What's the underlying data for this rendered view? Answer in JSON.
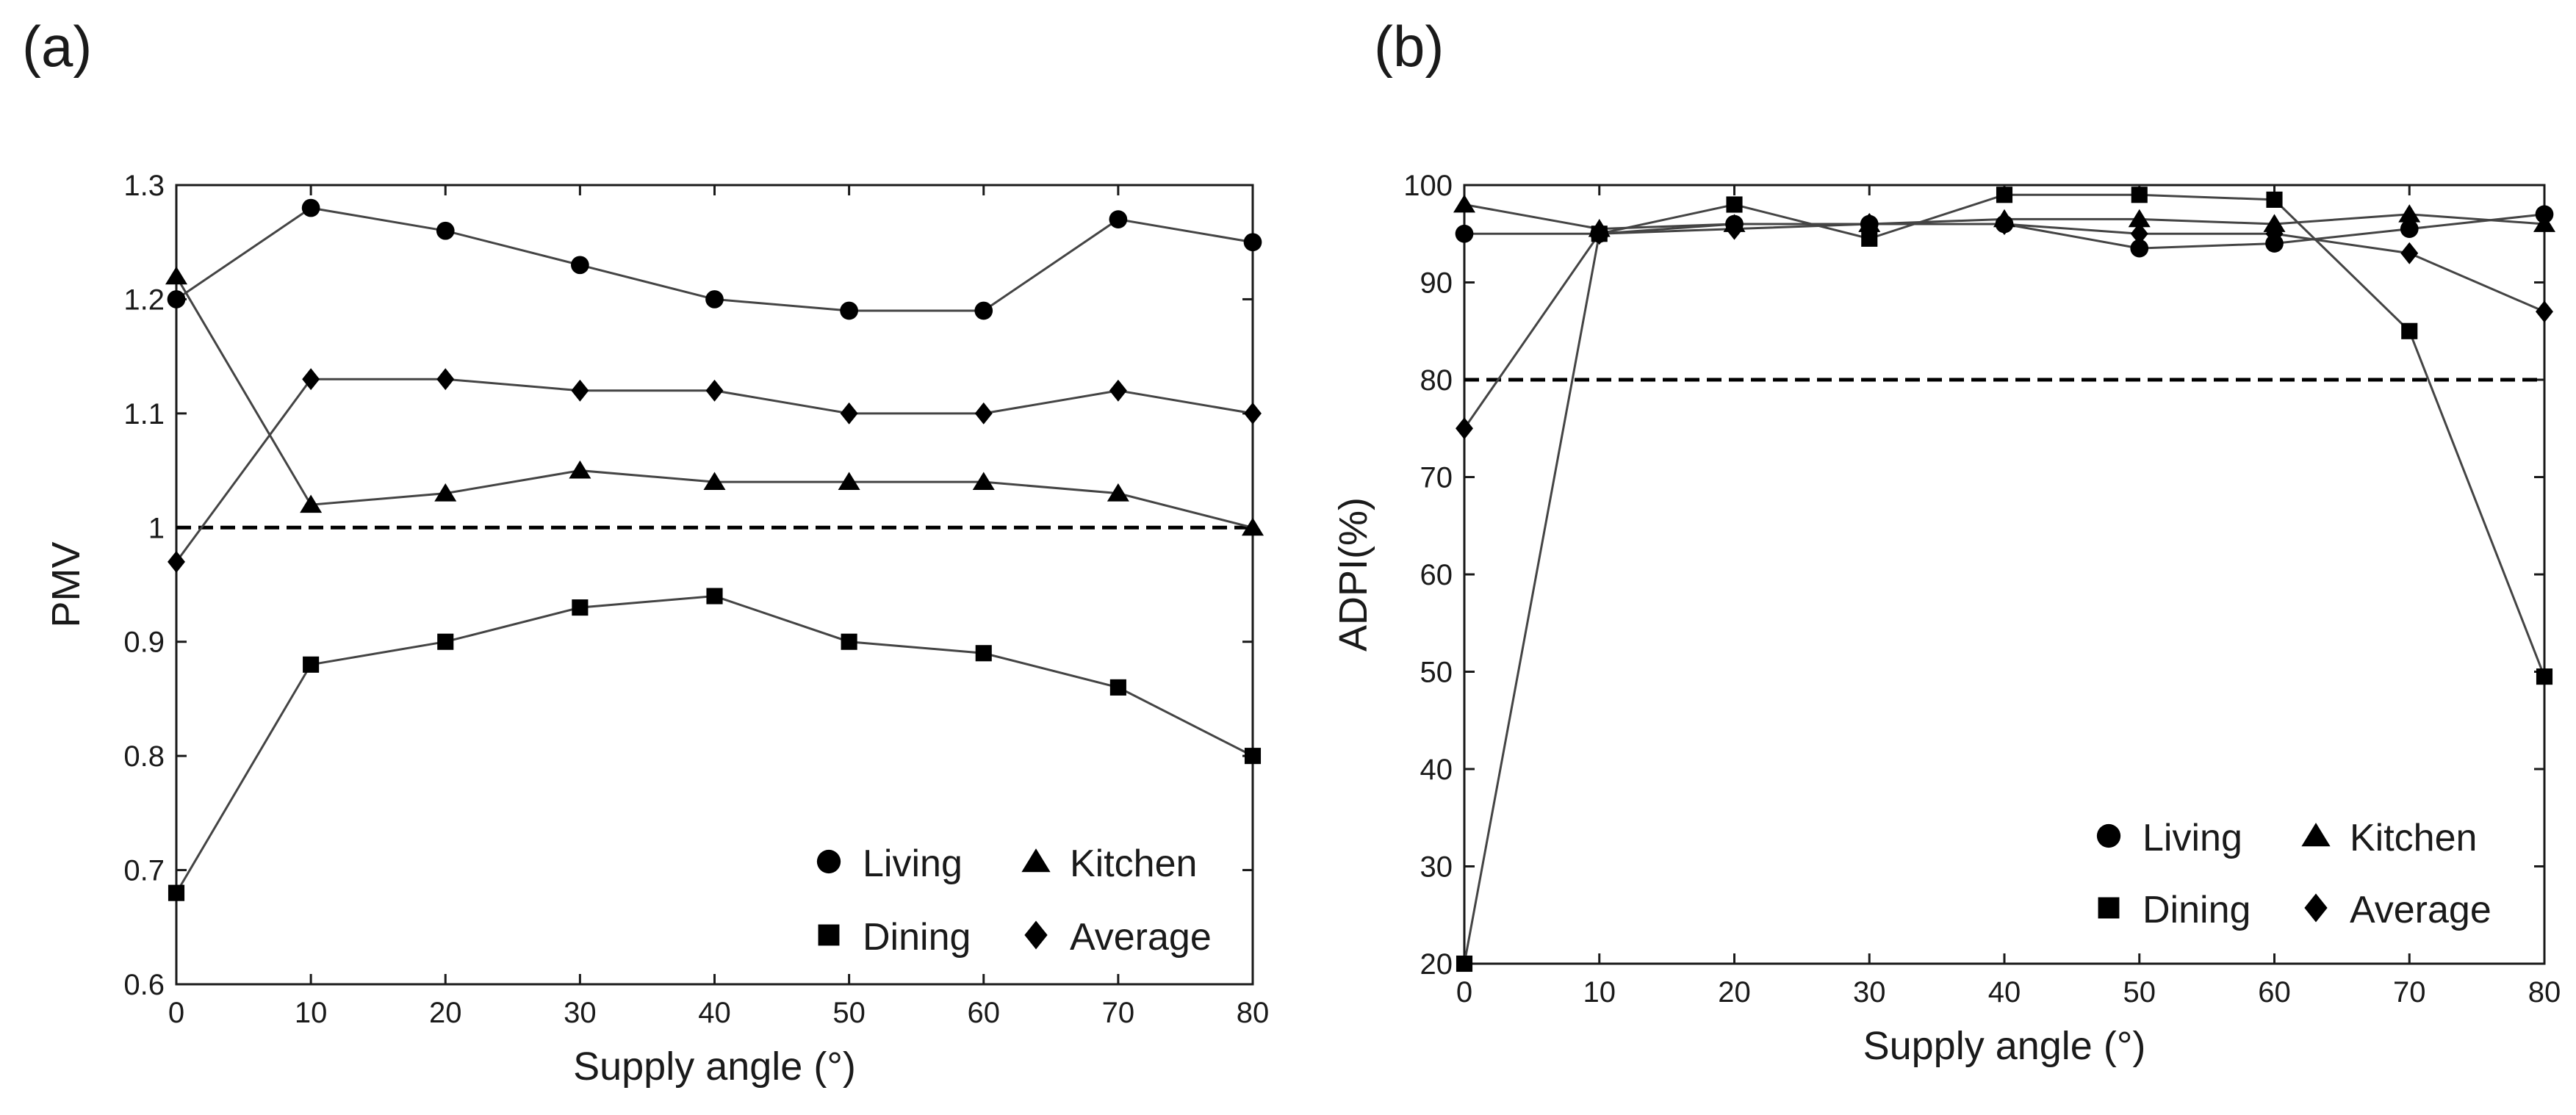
{
  "chart_data": [
    {
      "panel_label": "(a)",
      "type": "line",
      "xlabel": "Supply angle (°)",
      "ylabel": "PMV",
      "xlim": [
        0,
        80
      ],
      "ylim": [
        0.6,
        1.3
      ],
      "xticks": [
        0,
        10,
        20,
        30,
        40,
        50,
        60,
        70,
        80
      ],
      "yticks": [
        0.6,
        0.7,
        0.8,
        0.9,
        1,
        1.1,
        1.2,
        1.3
      ],
      "reference_line": 1,
      "legend_position": "bottom-right",
      "x": [
        0,
        10,
        20,
        30,
        40,
        50,
        60,
        70,
        80
      ],
      "series": [
        {
          "name": "Living",
          "marker": "circle",
          "values": [
            1.2,
            1.28,
            1.26,
            1.23,
            1.2,
            1.19,
            1.19,
            1.27,
            1.25
          ]
        },
        {
          "name": "Kitchen",
          "marker": "triangle",
          "values": [
            1.22,
            1.02,
            1.03,
            1.05,
            1.04,
            1.04,
            1.04,
            1.03,
            1.0
          ]
        },
        {
          "name": "Dining",
          "marker": "square",
          "values": [
            0.68,
            0.88,
            0.9,
            0.93,
            0.94,
            0.9,
            0.89,
            0.86,
            0.8
          ]
        },
        {
          "name": "Average",
          "marker": "diamond",
          "values": [
            0.97,
            1.13,
            1.13,
            1.12,
            1.12,
            1.1,
            1.1,
            1.12,
            1.1
          ]
        }
      ]
    },
    {
      "panel_label": "(b)",
      "type": "line",
      "xlabel": "Supply angle (°)",
      "ylabel": "ADPI(%)",
      "xlim": [
        0,
        80
      ],
      "ylim": [
        20,
        100
      ],
      "xticks": [
        0,
        10,
        20,
        30,
        40,
        50,
        60,
        70,
        80
      ],
      "yticks": [
        20,
        30,
        40,
        50,
        60,
        70,
        80,
        90,
        100
      ],
      "reference_line": 80,
      "legend_position": "bottom-right",
      "x": [
        0,
        10,
        20,
        30,
        40,
        50,
        60,
        70,
        80
      ],
      "series": [
        {
          "name": "Living",
          "marker": "circle",
          "values": [
            95,
            95,
            96,
            96,
            96,
            93.5,
            94,
            95.5,
            97
          ]
        },
        {
          "name": "Kitchen",
          "marker": "triangle",
          "values": [
            98,
            95.5,
            96,
            96,
            96.5,
            96.5,
            96,
            97,
            96
          ]
        },
        {
          "name": "Dining",
          "marker": "square",
          "values": [
            20,
            95,
            98,
            94.5,
            99,
            99,
            98.5,
            85,
            49.5
          ]
        },
        {
          "name": "Average",
          "marker": "diamond",
          "values": [
            75,
            95,
            95.5,
            96,
            96,
            95,
            95,
            93,
            87
          ]
        }
      ]
    }
  ]
}
